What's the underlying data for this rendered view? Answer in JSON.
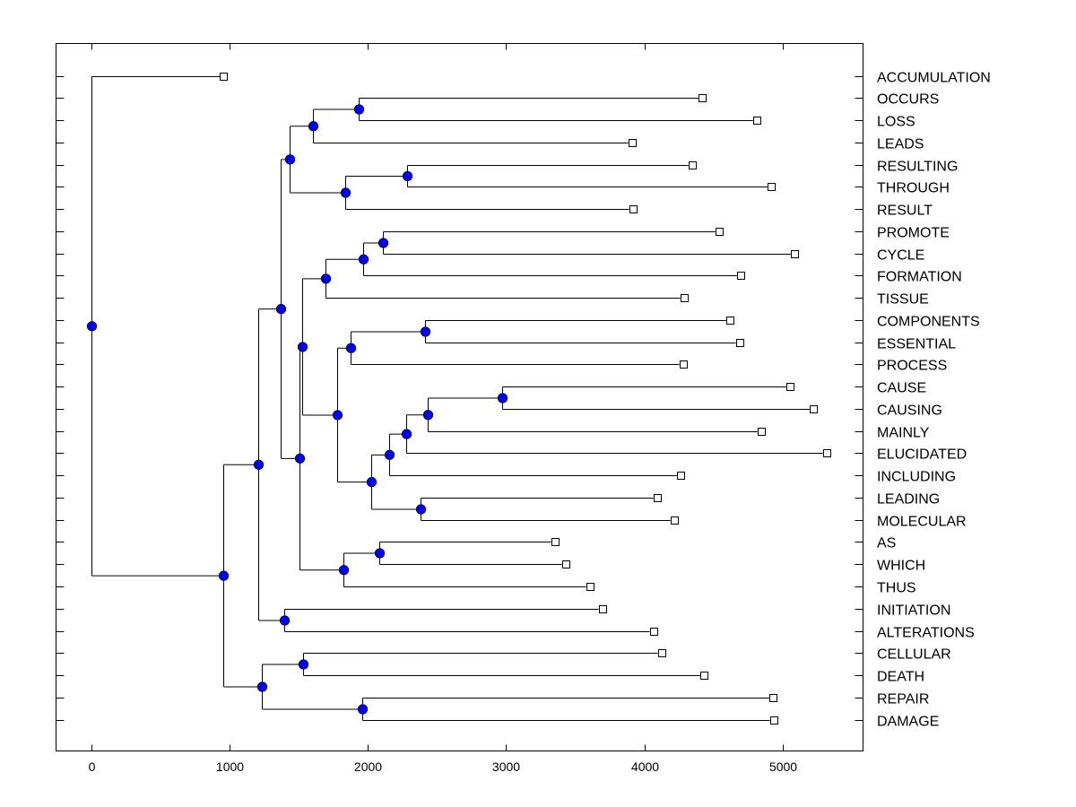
{
  "chart_data": {
    "type": "dendrogram",
    "title": "",
    "xlabel": "",
    "ylabel": "",
    "xlim": [
      -250,
      5600
    ],
    "x_ticks": [
      0,
      1000,
      2000,
      3000,
      4000,
      5000
    ],
    "x_tick_labels": [
      "0",
      "1000",
      "2000",
      "3000",
      "4000",
      "5000"
    ],
    "grid": false,
    "node_color": "#0000ff",
    "leaves": [
      {
        "label": "ACCUMULATION",
        "value": 955
      },
      {
        "label": "OCCURS",
        "value": 4416
      },
      {
        "label": "LOSS",
        "value": 4812
      },
      {
        "label": "LEADS",
        "value": 3909
      },
      {
        "label": "RESULTING",
        "value": 4344
      },
      {
        "label": "THROUGH",
        "value": 4916
      },
      {
        "label": "RESULT",
        "value": 3916
      },
      {
        "label": "PROMOTE",
        "value": 4539
      },
      {
        "label": "CYCLE",
        "value": 5084
      },
      {
        "label": "FORMATION",
        "value": 4695
      },
      {
        "label": "TISSUE",
        "value": 4286
      },
      {
        "label": "COMPONENTS",
        "value": 4617
      },
      {
        "label": "ESSENTIAL",
        "value": 4688
      },
      {
        "label": "PROCESS",
        "value": 4279
      },
      {
        "label": "CAUSE",
        "value": 5052
      },
      {
        "label": "CAUSING",
        "value": 5221
      },
      {
        "label": "MAINLY",
        "value": 4844
      },
      {
        "label": "ELUCIDATED",
        "value": 5318
      },
      {
        "label": "INCLUDING",
        "value": 4260
      },
      {
        "label": "LEADING",
        "value": 4091
      },
      {
        "label": "MOLECULAR",
        "value": 4214
      },
      {
        "label": "AS",
        "value": 3351
      },
      {
        "label": "WHICH",
        "value": 3429
      },
      {
        "label": "THUS",
        "value": 3604
      },
      {
        "label": "INITIATION",
        "value": 3695
      },
      {
        "label": "ALTERATIONS",
        "value": 4065
      },
      {
        "label": "CELLULAR",
        "value": 4123
      },
      {
        "label": "DEATH",
        "value": 4429
      },
      {
        "label": "REPAIR",
        "value": 4929
      },
      {
        "label": "DAMAGE",
        "value": 4935
      }
    ],
    "tree": {
      "value": 0,
      "children": [
        {
          "leaf": 0
        },
        {
          "value": 955,
          "children": [
            {
              "value": 1208,
              "children": [
                {
                  "value": 1370,
                  "children": [
                    {
                      "value": 1435,
                      "children": [
                        {
                          "value": 1604,
                          "children": [
                            {
                              "value": 1935,
                              "children": [
                                {
                                  "leaf": 1
                                },
                                {
                                  "leaf": 2
                                }
                              ]
                            },
                            {
                              "leaf": 3
                            }
                          ]
                        },
                        {
                          "value": 1838,
                          "children": [
                            {
                              "value": 2286,
                              "children": [
                                {
                                  "leaf": 4
                                },
                                {
                                  "leaf": 5
                                }
                              ]
                            },
                            {
                              "leaf": 6
                            }
                          ]
                        }
                      ]
                    },
                    {
                      "value": 1506,
                      "children": [
                        {
                          "value": 1526,
                          "children": [
                            {
                              "value": 1695,
                              "children": [
                                {
                                  "value": 1968,
                                  "children": [
                                    {
                                      "value": 2110,
                                      "children": [
                                        {
                                          "leaf": 7
                                        },
                                        {
                                          "leaf": 8
                                        }
                                      ]
                                    },
                                    {
                                      "leaf": 9
                                    }
                                  ]
                                },
                                {
                                  "leaf": 10
                                }
                              ]
                            },
                            {
                              "value": 1779,
                              "children": [
                                {
                                  "value": 1877,
                                  "children": [
                                    {
                                      "value": 2416,
                                      "children": [
                                        {
                                          "leaf": 11
                                        },
                                        {
                                          "leaf": 12
                                        }
                                      ]
                                    },
                                    {
                                      "leaf": 13
                                    }
                                  ]
                                },
                                {
                                  "value": 2026,
                                  "children": [
                                    {
                                      "value": 2156,
                                      "children": [
                                        {
                                          "value": 2279,
                                          "children": [
                                            {
                                              "value": 2435,
                                              "children": [
                                                {
                                                  "value": 2968,
                                                  "children": [
                                                    {
                                                      "leaf": 14
                                                    },
                                                    {
                                                      "leaf": 15
                                                    }
                                                  ]
                                                },
                                                {
                                                  "leaf": 16
                                                }
                                              ]
                                            },
                                            {
                                              "leaf": 17
                                            }
                                          ]
                                        },
                                        {
                                          "leaf": 18
                                        }
                                      ]
                                    },
                                    {
                                      "value": 2383,
                                      "children": [
                                        {
                                          "leaf": 19
                                        },
                                        {
                                          "leaf": 20
                                        }
                                      ]
                                    }
                                  ]
                                }
                              ]
                            }
                          ]
                        },
                        {
                          "value": 1825,
                          "children": [
                            {
                              "value": 2084,
                              "children": [
                                {
                                  "leaf": 21
                                },
                                {
                                  "leaf": 22
                                }
                              ]
                            },
                            {
                              "leaf": 23
                            }
                          ]
                        }
                      ]
                    }
                  ]
                },
                {
                  "value": 1396,
                  "children": [
                    {
                      "leaf": 24
                    },
                    {
                      "leaf": 25
                    }
                  ]
                }
              ]
            },
            {
              "value": 1234,
              "children": [
                {
                  "value": 1532,
                  "children": [
                    {
                      "leaf": 26
                    },
                    {
                      "leaf": 27
                    }
                  ]
                },
                {
                  "value": 1961,
                  "children": [
                    {
                      "leaf": 28
                    },
                    {
                      "leaf": 29
                    }
                  ]
                }
              ]
            }
          ]
        }
      ]
    }
  }
}
